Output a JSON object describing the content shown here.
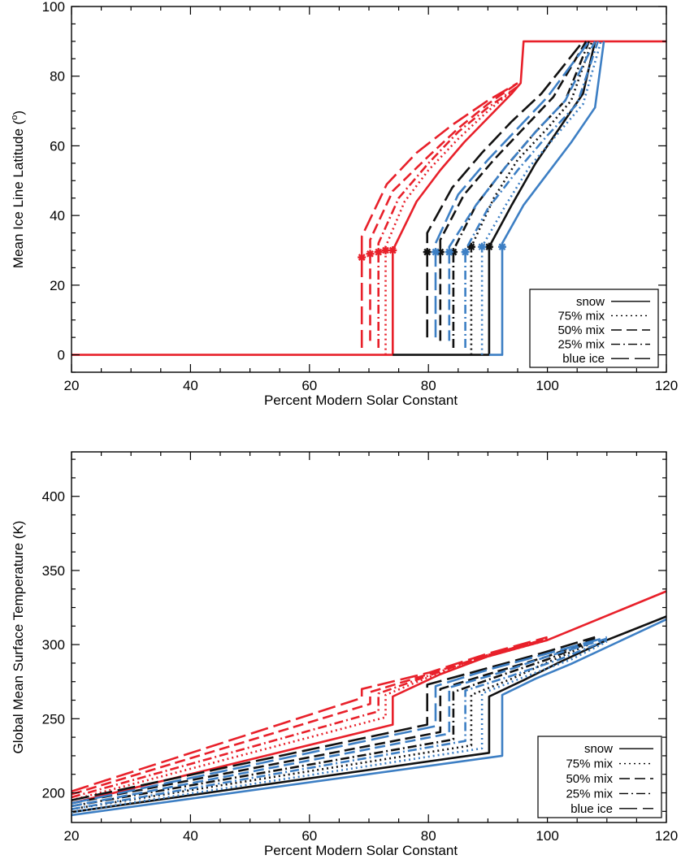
{
  "colors": {
    "red": "#e8202a",
    "black": "#111111",
    "blue": "#3d7fc4"
  },
  "chart_data": [
    {
      "type": "line",
      "xlabel": "Percent Modern Solar Constant",
      "ylabel": "Mean Ice Line Latitude (",
      "ylabel_sup": "o",
      "ylabel_end": ")",
      "xlim": [
        20,
        120
      ],
      "ylim": [
        -5,
        100
      ],
      "xticks": [
        20,
        40,
        60,
        80,
        100,
        120
      ],
      "yticks": [
        0,
        20,
        40,
        60,
        80,
        100
      ],
      "grid": false,
      "legend_position": "bottom-right",
      "legend": [
        {
          "label": "snow",
          "dash": "solid"
        },
        {
          "label": "75% mix",
          "dash": "dotted"
        },
        {
          "label": "50% mix",
          "dash": "dashed"
        },
        {
          "label": "25% mix",
          "dash": "dashdot"
        },
        {
          "label": "blue ice",
          "dash": "longdash"
        }
      ],
      "series": [
        {
          "color": "red",
          "dash": "solid",
          "x": [
            20,
            74,
            74,
            78,
            82,
            86,
            90,
            94,
            95.5,
            96,
            120
          ],
          "y": [
            0,
            0,
            30,
            44,
            53,
            61,
            68,
            75,
            78,
            90,
            90
          ],
          "star": [
            74,
            30
          ]
        },
        {
          "color": "red",
          "dash": "dotted",
          "x": [
            72.8,
            72.8,
            76,
            80,
            85,
            90,
            95
          ],
          "y": [
            0,
            31,
            44,
            53,
            62,
            70,
            77
          ],
          "star": [
            72.8,
            30
          ]
        },
        {
          "color": "red",
          "dash": "dashdot",
          "x": [
            71.6,
            71.6,
            75,
            80,
            85,
            90,
            95
          ],
          "y": [
            2,
            32,
            45,
            55,
            64,
            71,
            77
          ],
          "star": [
            71.6,
            29.5
          ]
        },
        {
          "color": "red",
          "dash": "dashed",
          "x": [
            70.2,
            70.2,
            74,
            80,
            85,
            90,
            95
          ],
          "y": [
            4,
            33,
            47,
            57,
            65,
            72,
            78
          ],
          "star": [
            70.2,
            29
          ]
        },
        {
          "color": "red",
          "dash": "longdash",
          "x": [
            68.8,
            68.8,
            73,
            78,
            84,
            90,
            95
          ],
          "y": [
            2,
            34,
            49,
            58,
            66,
            73,
            78
          ],
          "star": [
            68.8,
            28
          ]
        },
        {
          "color": "black",
          "dash": "solid",
          "x": [
            74,
            90.2,
            90.2,
            94,
            98,
            102,
            106,
            108
          ],
          "y": [
            0,
            0,
            31,
            43,
            55,
            65,
            75,
            90
          ],
          "star": [
            90.2,
            31
          ]
        },
        {
          "color": "black",
          "dash": "dotted",
          "x": [
            87.2,
            87.2,
            91,
            95,
            100,
            104,
            107.5
          ],
          "y": [
            0,
            31,
            45,
            56,
            65,
            73,
            90
          ],
          "star": [
            87.2,
            31
          ]
        },
        {
          "color": "black",
          "dash": "dashdot",
          "x": [
            84.2,
            84.2,
            88,
            93,
            98,
            103,
            107
          ],
          "y": [
            2,
            30,
            43,
            54,
            64,
            73,
            90
          ],
          "star": [
            84.2,
            29.5
          ]
        },
        {
          "color": "black",
          "dash": "dashed",
          "x": [
            82,
            82,
            86,
            91,
            96,
            101,
            106.5
          ],
          "y": [
            4,
            33,
            46,
            56,
            65,
            74,
            90
          ],
          "star": [
            82,
            29.5
          ]
        },
        {
          "color": "black",
          "dash": "longdash",
          "x": [
            79.8,
            79.8,
            84,
            89,
            94,
            99,
            106
          ],
          "y": [
            5,
            35,
            48,
            58,
            67,
            75,
            90
          ],
          "star": [
            79.8,
            29.5
          ]
        },
        {
          "color": "blue",
          "dash": "solid",
          "x": [
            90.2,
            92.4,
            92.4,
            96,
            100,
            104,
            108,
            109.5
          ],
          "y": [
            0,
            0,
            32,
            43,
            52,
            61,
            71,
            90
          ],
          "star": [
            92.4,
            31
          ]
        },
        {
          "color": "blue",
          "dash": "dotted",
          "x": [
            89,
            89,
            93,
            97,
            102,
            106,
            109
          ],
          "y": [
            0,
            31,
            43,
            54,
            64,
            72,
            90
          ],
          "star": [
            89,
            31
          ]
        },
        {
          "color": "blue",
          "dash": "dashdot",
          "x": [
            86.2,
            86.2,
            90,
            95,
            100,
            105,
            108.5
          ],
          "y": [
            2,
            30,
            42,
            53,
            63,
            72,
            90
          ],
          "star": [
            86.2,
            29.5
          ]
        },
        {
          "color": "blue",
          "dash": "dashed",
          "x": [
            83.5,
            83.5,
            88,
            93,
            98,
            103,
            108
          ],
          "y": [
            4,
            31,
            43,
            54,
            64,
            73,
            90
          ],
          "star": [
            83.5,
            29.5
          ]
        },
        {
          "color": "blue",
          "dash": "longdash",
          "x": [
            81.2,
            81.2,
            85,
            90,
            95,
            100,
            107
          ],
          "y": [
            5,
            32,
            46,
            56,
            65,
            74,
            90
          ],
          "star": [
            81.2,
            29.5
          ]
        }
      ]
    },
    {
      "type": "line",
      "xlabel": "Percent Modern Solar Constant",
      "ylabel": "Global Mean Surface Temperature (K)",
      "xlim": [
        20,
        120
      ],
      "ylim": [
        180,
        430
      ],
      "xticks": [
        20,
        40,
        60,
        80,
        100,
        120
      ],
      "yticks": [
        200,
        250,
        300,
        350,
        400
      ],
      "grid": false,
      "legend_position": "bottom-right",
      "legend": [
        {
          "label": "snow",
          "dash": "solid"
        },
        {
          "label": "75% mix",
          "dash": "dotted"
        },
        {
          "label": "50% mix",
          "dash": "dashed"
        },
        {
          "label": "25% mix",
          "dash": "dashdot"
        },
        {
          "label": "blue ice",
          "dash": "longdash"
        }
      ],
      "series": [
        {
          "color": "red",
          "dash": "solid",
          "x": [
            20,
            74,
            74,
            82,
            90,
            100,
            120
          ],
          "y": [
            193,
            246,
            265,
            280,
            292,
            303,
            336
          ]
        },
        {
          "color": "red",
          "dash": "dotted",
          "x": [
            20,
            72.8,
            72.8,
            80,
            90,
            100
          ],
          "y": [
            195,
            251,
            266,
            278,
            292,
            303
          ]
        },
        {
          "color": "red",
          "dash": "dashdot",
          "x": [
            20,
            71.6,
            71.6,
            80,
            90,
            100
          ],
          "y": [
            197,
            255,
            267,
            279,
            293,
            304
          ]
        },
        {
          "color": "red",
          "dash": "dashed",
          "x": [
            20,
            70.2,
            70.2,
            80,
            90,
            100
          ],
          "y": [
            199,
            260,
            268,
            280,
            293,
            304
          ]
        },
        {
          "color": "red",
          "dash": "longdash",
          "x": [
            20,
            68.8,
            68.8,
            80,
            90,
            100
          ],
          "y": [
            201,
            264,
            270,
            281,
            294,
            305
          ]
        },
        {
          "color": "black",
          "dash": "solid",
          "x": [
            20,
            90.2,
            90.2,
            96,
            102,
            110,
            120
          ],
          "y": [
            187,
            227,
            265,
            276,
            288,
            303,
            319
          ]
        },
        {
          "color": "black",
          "dash": "dotted",
          "x": [
            20,
            87.2,
            87.2,
            94,
            100,
            108
          ],
          "y": [
            189,
            232,
            266,
            277,
            288,
            302
          ]
        },
        {
          "color": "black",
          "dash": "dashdot",
          "x": [
            20,
            84.2,
            84.2,
            92,
            100,
            108
          ],
          "y": [
            191,
            236,
            268,
            279,
            290,
            303
          ]
        },
        {
          "color": "black",
          "dash": "dashed",
          "x": [
            20,
            82,
            82,
            90,
            100,
            108
          ],
          "y": [
            193,
            241,
            270,
            280,
            292,
            304
          ]
        },
        {
          "color": "black",
          "dash": "longdash",
          "x": [
            20,
            79.8,
            79.8,
            88,
            98,
            108
          ],
          "y": [
            195,
            246,
            273,
            282,
            293,
            305
          ]
        },
        {
          "color": "blue",
          "dash": "solid",
          "x": [
            20,
            92.4,
            92.4,
            98,
            104,
            112,
            120
          ],
          "y": [
            185,
            225,
            266,
            277,
            287,
            302,
            317
          ]
        },
        {
          "color": "blue",
          "dash": "dotted",
          "x": [
            20,
            89,
            89,
            96,
            104,
            110
          ],
          "y": [
            187,
            230,
            267,
            278,
            290,
            302
          ]
        },
        {
          "color": "blue",
          "dash": "dashdot",
          "x": [
            20,
            86.2,
            86.2,
            94,
            102,
            110
          ],
          "y": [
            189,
            235,
            269,
            279,
            290,
            303
          ]
        },
        {
          "color": "blue",
          "dash": "dashed",
          "x": [
            20,
            83.5,
            83.5,
            92,
            100,
            110
          ],
          "y": [
            191,
            240,
            271,
            281,
            292,
            304
          ]
        },
        {
          "color": "blue",
          "dash": "longdash",
          "x": [
            20,
            81.2,
            81.2,
            90,
            100,
            110
          ],
          "y": [
            193,
            245,
            272,
            283,
            294,
            305
          ]
        }
      ]
    }
  ]
}
